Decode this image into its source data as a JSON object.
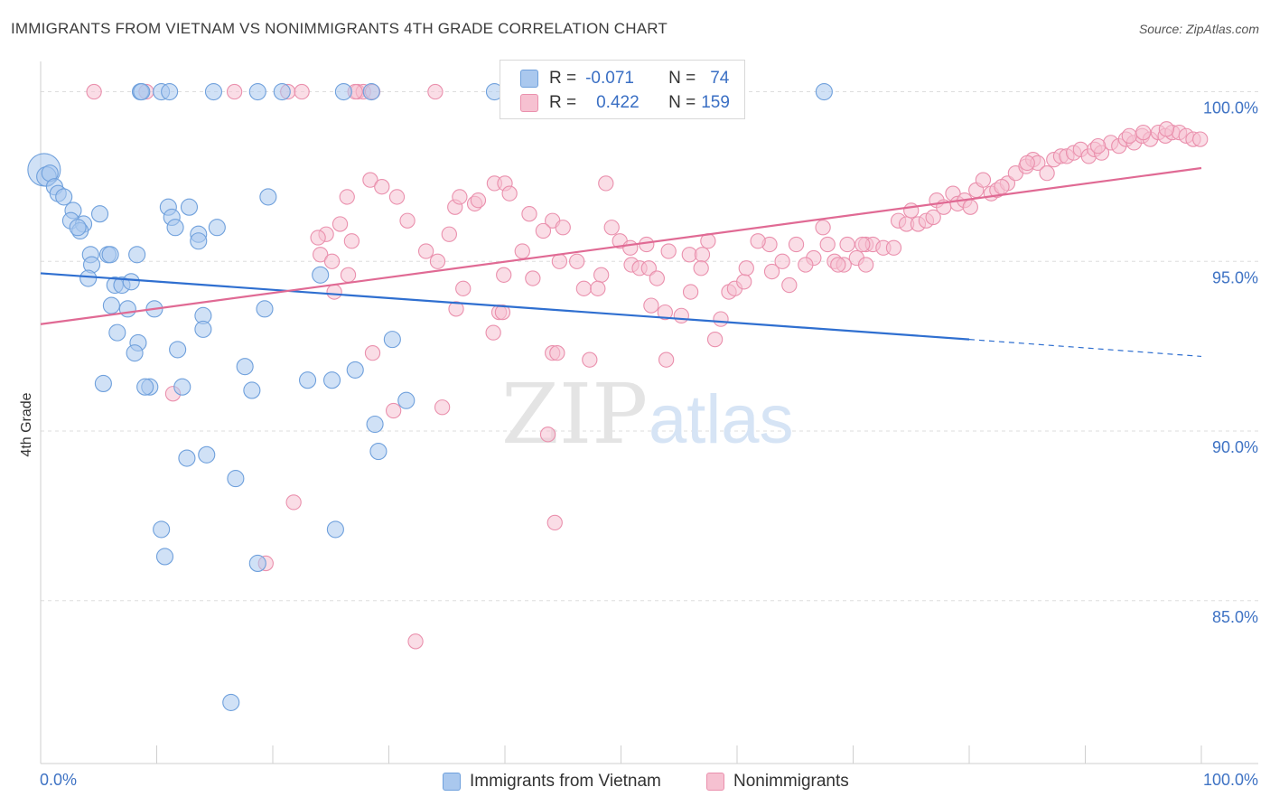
{
  "title": "IMMIGRANTS FROM VIETNAM VS NONIMMIGRANTS 4TH GRADE CORRELATION CHART",
  "source": "Source: ZipAtlas.com",
  "watermark": {
    "zip": "ZIP",
    "atlas": "atlas"
  },
  "legend": {
    "r_label": "R =",
    "n_label": "N =",
    "series": [
      {
        "r": "-0.071",
        "n": "74"
      },
      {
        "r": "0.422",
        "n": "159"
      }
    ]
  },
  "bottom_legend": [
    "Immigrants from Vietnam",
    "Nonimmigrants"
  ],
  "chart_data": {
    "type": "scatter",
    "title": "IMMIGRANTS FROM VIETNAM VS NONIMMIGRANTS 4TH GRADE CORRELATION CHART",
    "xlabel": "",
    "ylabel": "4th Grade",
    "xlim": [
      0,
      100
    ],
    "ylim": [
      80.2,
      100.6
    ],
    "x_tick_labels": [
      "0.0%",
      "100.0%"
    ],
    "y_ticks": [
      100,
      95,
      90,
      85
    ],
    "y_tick_labels": [
      "100.0%",
      "95.0%",
      "90.0%",
      "85.0%"
    ],
    "colors": {
      "blue_fill": "#aac8ee",
      "blue_stroke": "#6fa0dc",
      "blue_line": "#2f6fd0",
      "pink_fill": "#f6c1d1",
      "pink_stroke": "#ea90ad",
      "pink_line": "#e06a94",
      "grid": "#dddddd",
      "tick_label": "#3f73c4"
    },
    "series": [
      {
        "name": "Immigrants from Vietnam",
        "r": -0.071,
        "n": 74,
        "trend": {
          "x0": 0,
          "y0": 94.65,
          "x1": 80,
          "y1": 92.7,
          "dash_to_x": 100,
          "dash_to_y": 92.2
        },
        "points": [
          [
            0.3,
            97.7,
            20
          ],
          [
            0.5,
            97.5,
            12
          ],
          [
            0.8,
            97.6,
            10
          ],
          [
            1.2,
            97.2,
            10
          ],
          [
            1.5,
            97.0,
            10
          ],
          [
            2.0,
            96.9,
            10
          ],
          [
            2.8,
            96.5,
            10
          ],
          [
            2.6,
            96.2,
            10
          ],
          [
            3.7,
            96.1,
            10
          ],
          [
            3.4,
            95.9,
            10
          ],
          [
            5.1,
            96.4,
            10
          ],
          [
            3.2,
            96.0,
            10
          ],
          [
            4.3,
            95.2,
            10
          ],
          [
            5.8,
            95.2,
            10
          ],
          [
            8.3,
            95.2,
            10
          ],
          [
            6.0,
            95.2,
            10
          ],
          [
            4.4,
            94.9,
            10
          ],
          [
            4.1,
            94.5,
            10
          ],
          [
            6.4,
            94.3,
            10
          ],
          [
            7.0,
            94.3,
            10
          ],
          [
            7.8,
            94.4,
            10
          ],
          [
            6.1,
            93.7,
            10
          ],
          [
            7.5,
            93.6,
            10
          ],
          [
            9.8,
            93.6,
            10
          ],
          [
            6.6,
            92.9,
            10
          ],
          [
            8.4,
            92.6,
            10
          ],
          [
            8.1,
            92.3,
            10
          ],
          [
            11.8,
            92.4,
            10
          ],
          [
            14.0,
            93.4,
            10
          ],
          [
            14.0,
            93.0,
            10
          ],
          [
            12.8,
            96.6,
            10
          ],
          [
            11.0,
            96.6,
            10
          ],
          [
            11.3,
            96.3,
            10
          ],
          [
            11.6,
            96.0,
            10
          ],
          [
            13.6,
            95.8,
            10
          ],
          [
            13.6,
            95.6,
            10
          ],
          [
            15.2,
            96.0,
            10
          ],
          [
            19.6,
            96.9,
            10
          ],
          [
            19.3,
            93.6,
            10
          ],
          [
            17.6,
            91.9,
            10
          ],
          [
            18.2,
            91.2,
            10
          ],
          [
            12.2,
            91.3,
            10
          ],
          [
            9.4,
            91.3,
            10
          ],
          [
            9.0,
            91.3,
            10
          ],
          [
            5.4,
            91.4,
            10
          ],
          [
            12.6,
            89.2,
            10
          ],
          [
            14.3,
            89.3,
            10
          ],
          [
            16.8,
            88.6,
            10
          ],
          [
            10.4,
            87.1,
            10
          ],
          [
            10.7,
            86.3,
            10
          ],
          [
            18.7,
            86.1,
            10
          ],
          [
            25.4,
            87.1,
            10
          ],
          [
            16.4,
            82.0,
            10
          ],
          [
            23.0,
            91.5,
            10
          ],
          [
            25.1,
            91.5,
            10
          ],
          [
            27.1,
            91.8,
            10
          ],
          [
            28.8,
            90.2,
            10
          ],
          [
            29.1,
            89.4,
            10
          ],
          [
            31.5,
            90.9,
            10
          ],
          [
            30.3,
            92.7,
            10
          ],
          [
            24.1,
            94.6,
            10
          ],
          [
            8.6,
            100.0,
            10
          ],
          [
            8.7,
            100.0,
            10
          ],
          [
            10.4,
            100.0,
            10
          ],
          [
            11.1,
            100.0,
            10
          ],
          [
            14.9,
            100.0,
            10
          ],
          [
            18.7,
            100.0,
            10
          ],
          [
            20.8,
            100.0,
            10
          ],
          [
            26.1,
            100.0,
            10
          ],
          [
            28.5,
            100.0,
            10
          ],
          [
            39.1,
            100.0,
            10
          ],
          [
            67.5,
            100.0,
            10
          ]
        ]
      },
      {
        "name": "Nonimmigrants",
        "r": 0.422,
        "n": 159,
        "trend": {
          "x0": 0,
          "y0": 93.15,
          "x1": 100,
          "y1": 97.75
        },
        "points": [
          [
            4.6,
            100.0,
            9
          ],
          [
            9.1,
            100.0,
            9
          ],
          [
            16.7,
            100.0,
            9
          ],
          [
            21.3,
            100.0,
            9
          ],
          [
            22.5,
            100.0,
            9
          ],
          [
            27.3,
            100.0,
            9
          ],
          [
            27.8,
            100.0,
            9
          ],
          [
            34.0,
            100.0,
            9
          ],
          [
            27.1,
            100.0,
            9
          ],
          [
            28.6,
            100.0,
            9
          ],
          [
            28.4,
            97.4,
            9
          ],
          [
            29.4,
            97.2,
            9
          ],
          [
            30.7,
            96.9,
            9
          ],
          [
            26.4,
            96.9,
            9
          ],
          [
            25.8,
            96.1,
            9
          ],
          [
            31.6,
            96.2,
            9
          ],
          [
            24.6,
            95.8,
            9
          ],
          [
            23.9,
            95.7,
            9
          ],
          [
            26.8,
            95.6,
            9
          ],
          [
            24.1,
            95.2,
            9
          ],
          [
            25.1,
            95.0,
            9
          ],
          [
            26.5,
            94.6,
            9
          ],
          [
            25.3,
            94.1,
            9
          ],
          [
            35.7,
            96.6,
            9
          ],
          [
            37.4,
            96.7,
            9
          ],
          [
            36.1,
            96.9,
            9
          ],
          [
            37.7,
            96.8,
            9
          ],
          [
            39.1,
            97.3,
            9
          ],
          [
            40.0,
            97.3,
            9
          ],
          [
            40.4,
            97.0,
            9
          ],
          [
            35.2,
            95.8,
            9
          ],
          [
            33.2,
            95.3,
            9
          ],
          [
            34.2,
            95.0,
            9
          ],
          [
            42.1,
            96.4,
            9
          ],
          [
            44.1,
            96.2,
            9
          ],
          [
            45.0,
            96.0,
            9
          ],
          [
            43.3,
            95.9,
            9
          ],
          [
            48.7,
            97.3,
            9
          ],
          [
            49.2,
            96.0,
            9
          ],
          [
            49.9,
            95.6,
            9
          ],
          [
            41.5,
            95.3,
            9
          ],
          [
            44.7,
            95.0,
            9
          ],
          [
            46.2,
            95.0,
            9
          ],
          [
            48.3,
            94.6,
            9
          ],
          [
            50.8,
            95.4,
            9
          ],
          [
            50.9,
            94.9,
            9
          ],
          [
            51.6,
            94.8,
            9
          ],
          [
            52.4,
            94.8,
            9
          ],
          [
            52.2,
            95.5,
            9
          ],
          [
            53.1,
            94.5,
            9
          ],
          [
            54.1,
            95.3,
            9
          ],
          [
            55.9,
            95.2,
            9
          ],
          [
            57.0,
            95.2,
            9
          ],
          [
            57.5,
            95.6,
            9
          ],
          [
            56.9,
            94.8,
            9
          ],
          [
            36.4,
            94.2,
            9
          ],
          [
            39.9,
            94.6,
            9
          ],
          [
            42.4,
            94.5,
            9
          ],
          [
            46.8,
            94.2,
            9
          ],
          [
            48.0,
            94.2,
            9
          ],
          [
            52.6,
            93.7,
            9
          ],
          [
            53.8,
            93.5,
            9
          ],
          [
            55.2,
            93.4,
            9
          ],
          [
            56.0,
            94.1,
            9
          ],
          [
            59.3,
            94.1,
            9
          ],
          [
            59.8,
            94.2,
            9
          ],
          [
            60.6,
            94.4,
            9
          ],
          [
            58.6,
            93.3,
            9
          ],
          [
            35.8,
            93.6,
            9
          ],
          [
            39.5,
            93.5,
            9
          ],
          [
            39.8,
            93.5,
            9
          ],
          [
            39.0,
            92.9,
            9
          ],
          [
            44.1,
            92.3,
            9
          ],
          [
            44.5,
            92.3,
            9
          ],
          [
            47.3,
            92.1,
            9
          ],
          [
            53.9,
            92.1,
            9
          ],
          [
            58.1,
            92.7,
            9
          ],
          [
            28.6,
            92.3,
            9
          ],
          [
            30.4,
            90.6,
            9
          ],
          [
            34.6,
            90.7,
            9
          ],
          [
            43.7,
            89.9,
            9
          ],
          [
            44.3,
            87.3,
            9
          ],
          [
            21.8,
            87.9,
            9
          ],
          [
            19.4,
            86.1,
            9
          ],
          [
            32.3,
            83.8,
            9
          ],
          [
            11.4,
            91.1,
            9
          ],
          [
            60.8,
            94.8,
            9
          ],
          [
            62.8,
            95.5,
            9
          ],
          [
            63.9,
            95.0,
            9
          ],
          [
            65.1,
            95.5,
            9
          ],
          [
            66.6,
            95.1,
            9
          ],
          [
            67.4,
            96.0,
            9
          ],
          [
            67.8,
            95.5,
            9
          ],
          [
            68.4,
            95.0,
            9
          ],
          [
            69.5,
            95.5,
            9
          ],
          [
            70.3,
            95.1,
            9
          ],
          [
            71.1,
            95.5,
            9
          ],
          [
            71.7,
            95.5,
            9
          ],
          [
            72.6,
            95.4,
            9
          ],
          [
            73.5,
            95.4,
            9
          ],
          [
            69.2,
            94.9,
            9
          ],
          [
            61.8,
            95.6,
            9
          ],
          [
            63.0,
            94.7,
            9
          ],
          [
            64.5,
            94.3,
            9
          ],
          [
            65.9,
            94.9,
            9
          ],
          [
            68.7,
            94.9,
            9
          ],
          [
            70.8,
            95.5,
            9
          ],
          [
            71.1,
            94.9,
            9
          ],
          [
            73.9,
            96.2,
            9
          ],
          [
            74.6,
            96.1,
            9
          ],
          [
            75.6,
            96.1,
            9
          ],
          [
            76.3,
            96.2,
            9
          ],
          [
            76.9,
            96.3,
            9
          ],
          [
            77.2,
            96.8,
            9
          ],
          [
            77.8,
            96.6,
            9
          ],
          [
            78.6,
            97.0,
            9
          ],
          [
            79.0,
            96.7,
            9
          ],
          [
            79.6,
            96.8,
            9
          ],
          [
            80.1,
            96.6,
            9
          ],
          [
            80.6,
            97.1,
            9
          ],
          [
            81.2,
            97.4,
            9
          ],
          [
            81.9,
            97.0,
            9
          ],
          [
            82.4,
            97.1,
            9
          ],
          [
            83.3,
            97.3,
            9
          ],
          [
            84.0,
            97.6,
            9
          ],
          [
            84.9,
            97.8,
            9
          ],
          [
            85.5,
            98.0,
            9
          ],
          [
            85.9,
            97.9,
            9
          ],
          [
            86.7,
            97.6,
            9
          ],
          [
            87.3,
            98.0,
            9
          ],
          [
            87.9,
            98.1,
            9
          ],
          [
            88.4,
            98.1,
            9
          ],
          [
            89.0,
            98.2,
            9
          ],
          [
            89.6,
            98.3,
            9
          ],
          [
            90.3,
            98.1,
            9
          ],
          [
            90.8,
            98.3,
            9
          ],
          [
            91.4,
            98.2,
            9
          ],
          [
            92.2,
            98.5,
            9
          ],
          [
            92.9,
            98.4,
            9
          ],
          [
            93.5,
            98.6,
            9
          ],
          [
            94.2,
            98.5,
            9
          ],
          [
            94.9,
            98.7,
            9
          ],
          [
            95.6,
            98.6,
            9
          ],
          [
            96.3,
            98.8,
            9
          ],
          [
            96.9,
            98.7,
            9
          ],
          [
            97.5,
            98.8,
            9
          ],
          [
            98.1,
            98.8,
            9
          ],
          [
            98.7,
            98.7,
            9
          ],
          [
            99.3,
            98.6,
            9
          ],
          [
            99.9,
            98.6,
            9
          ],
          [
            95.0,
            98.8,
            9
          ],
          [
            93.8,
            98.7,
            9
          ],
          [
            75.0,
            96.5,
            9
          ],
          [
            82.8,
            97.2,
            9
          ],
          [
            85.0,
            97.9,
            9
          ],
          [
            91.1,
            98.4,
            9
          ],
          [
            97.0,
            98.9,
            9
          ]
        ]
      }
    ]
  }
}
